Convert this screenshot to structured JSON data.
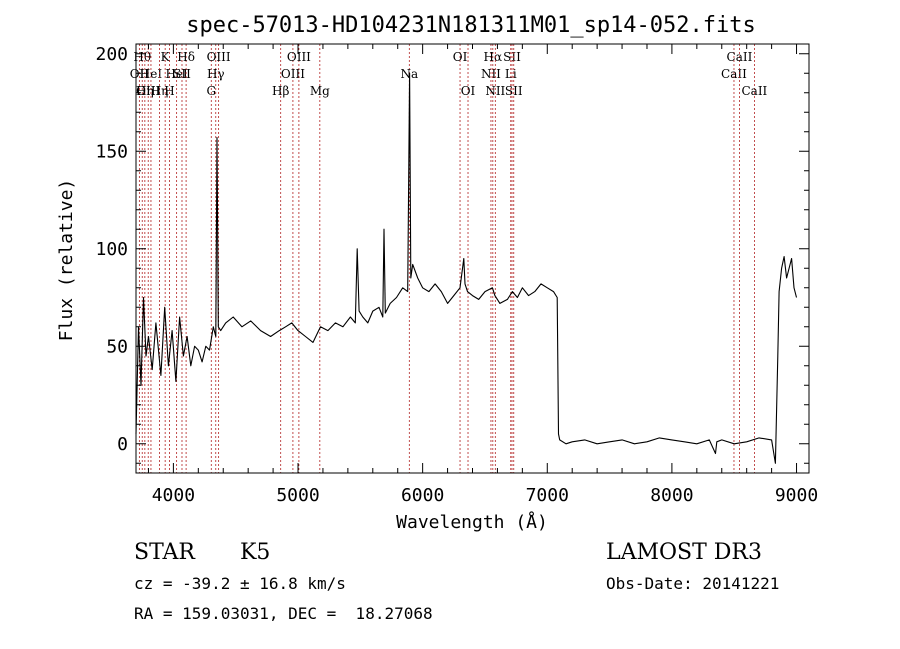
{
  "chart_data": {
    "type": "line",
    "title": "spec-57013-HD104231N181311M01_sp14-052.fits",
    "xlabel": "Wavelength (Å)",
    "ylabel": "Flux (relative)",
    "xlim": [
      3700,
      9100
    ],
    "ylim": [
      -15,
      205
    ],
    "xticks": [
      4000,
      5000,
      6000,
      7000,
      8000,
      9000
    ],
    "yticks": [
      0,
      50,
      100,
      150,
      200
    ],
    "grid": false,
    "series": [
      {
        "color": "#000000",
        "x": [
          3700,
          3720,
          3740,
          3760,
          3780,
          3800,
          3830,
          3860,
          3900,
          3930,
          3960,
          3990,
          4020,
          4050,
          4080,
          4110,
          4140,
          4170,
          4200,
          4230,
          4260,
          4290,
          4320,
          4340,
          4350,
          4360,
          4380,
          4420,
          4480,
          4550,
          4620,
          4700,
          4780,
          4850,
          4900,
          4950,
          5000,
          5060,
          5120,
          5180,
          5240,
          5300,
          5360,
          5420,
          5460,
          5475,
          5490,
          5520,
          5560,
          5600,
          5650,
          5680,
          5690,
          5700,
          5740,
          5790,
          5840,
          5880,
          5895,
          5905,
          5920,
          5960,
          6000,
          6050,
          6100,
          6150,
          6200,
          6250,
          6300,
          6330,
          6340,
          6360,
          6400,
          6450,
          6500,
          6560,
          6580,
          6620,
          6680,
          6720,
          6760,
          6800,
          6850,
          6900,
          6950,
          7000,
          7050,
          7080,
          7090,
          7100,
          7150,
          7200,
          7300,
          7400,
          7500,
          7600,
          7700,
          7800,
          7900,
          8000,
          8100,
          8200,
          8300,
          8350,
          8360,
          8400,
          8500,
          8600,
          8700,
          8800,
          8830,
          8850,
          8860,
          8880,
          8900,
          8920,
          8940,
          8960,
          8980,
          9000
        ],
        "values": [
          5,
          60,
          30,
          75,
          45,
          55,
          38,
          62,
          35,
          70,
          40,
          58,
          32,
          65,
          45,
          55,
          40,
          50,
          48,
          42,
          50,
          48,
          60,
          55,
          157,
          60,
          58,
          62,
          65,
          60,
          63,
          58,
          55,
          58,
          60,
          62,
          58,
          55,
          52,
          60,
          58,
          62,
          60,
          65,
          62,
          100,
          68,
          65,
          62,
          68,
          70,
          65,
          110,
          67,
          72,
          75,
          80,
          78,
          190,
          85,
          92,
          85,
          80,
          78,
          82,
          78,
          72,
          76,
          80,
          95,
          82,
          78,
          76,
          74,
          78,
          80,
          76,
          72,
          74,
          78,
          75,
          80,
          76,
          78,
          82,
          80,
          78,
          75,
          5,
          2,
          0,
          1,
          2,
          0,
          1,
          2,
          0,
          1,
          3,
          2,
          1,
          0,
          2,
          -5,
          1,
          2,
          0,
          1,
          3,
          2,
          -10,
          45,
          78,
          90,
          96,
          85,
          90,
          95,
          80,
          75
        ]
      }
    ],
    "lines": [
      {
        "x": 3727,
        "label": "OII",
        "row": 1
      },
      {
        "x": 3750,
        "label": "Hθ",
        "row": 0
      },
      {
        "x": 3771,
        "label": "Hη",
        "row": 2
      },
      {
        "x": 3798,
        "label": "OIII",
        "row": 2
      },
      {
        "x": 3820,
        "label": "HeI",
        "row": 1
      },
      {
        "x": 3889,
        "label": "Hη",
        "row": 2
      },
      {
        "x": 3934,
        "label": "K",
        "row": 0
      },
      {
        "x": 3969,
        "label": "H",
        "row": 2
      },
      {
        "x": 4026,
        "label": "HeI",
        "row": 1
      },
      {
        "x": 4069,
        "label": "SII",
        "row": 1
      },
      {
        "x": 4102,
        "label": "Hδ",
        "row": 0
      },
      {
        "x": 4304,
        "label": "G",
        "row": 2
      },
      {
        "x": 4340,
        "label": "Hγ",
        "row": 1
      },
      {
        "x": 4363,
        "label": "OIII",
        "row": 0
      },
      {
        "x": 4861,
        "label": "Hβ",
        "row": 2
      },
      {
        "x": 4959,
        "label": "OIII",
        "row": 1
      },
      {
        "x": 5007,
        "label": "OIII",
        "row": 0
      },
      {
        "x": 5175,
        "label": "Mg",
        "row": 2
      },
      {
        "x": 5893,
        "label": "Na",
        "row": 1
      },
      {
        "x": 6300,
        "label": "OI",
        "row": 0
      },
      {
        "x": 6364,
        "label": "OI",
        "row": 2
      },
      {
        "x": 6548,
        "label": "NII",
        "row": 1
      },
      {
        "x": 6563,
        "label": "Hα",
        "row": 0
      },
      {
        "x": 6583,
        "label": "NII",
        "row": 2
      },
      {
        "x": 6707,
        "label": "Li",
        "row": 1
      },
      {
        "x": 6717,
        "label": "SII",
        "row": 0
      },
      {
        "x": 6731,
        "label": "SII",
        "row": 2
      },
      {
        "x": 8498,
        "label": "CaII",
        "row": 1
      },
      {
        "x": 8542,
        "label": "CaII",
        "row": 0
      },
      {
        "x": 8662,
        "label": "CaII",
        "row": 2
      }
    ]
  },
  "info": {
    "object_class": "STAR",
    "subclass": "K5",
    "survey": "LAMOST DR3",
    "redshift_line": "cz = -39.2 ± 16.8 km/s",
    "obs_date": "Obs-Date: 20141221",
    "coords": "RA = 159.03031, DEC =  18.27068"
  }
}
